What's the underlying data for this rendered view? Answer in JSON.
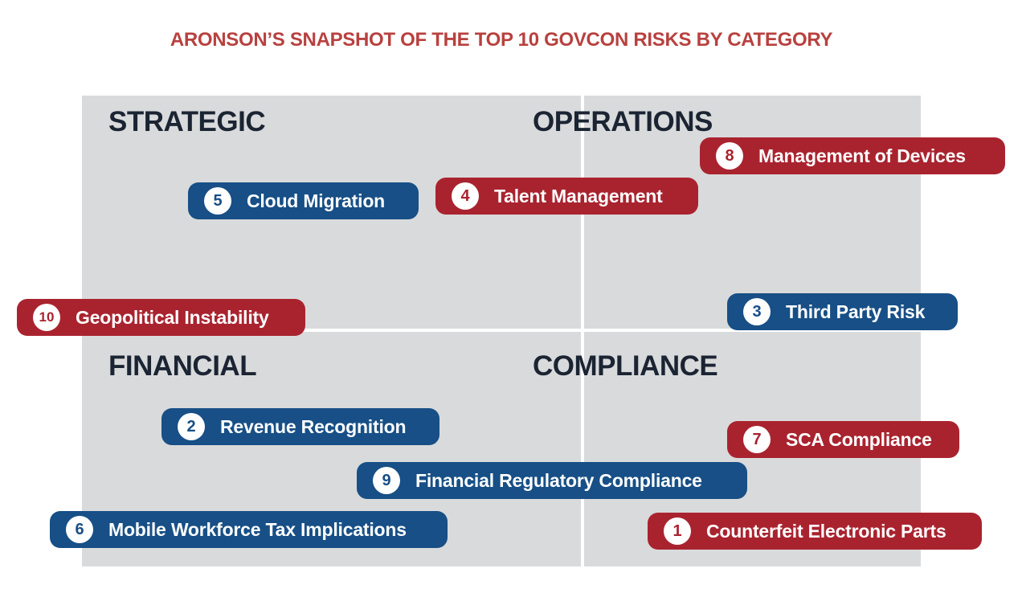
{
  "title": "ARONSON’S SNAPSHOT OF THE TOP 10 GOVCON RISKS BY CATEGORY",
  "colors": {
    "title": "#b8413f",
    "grid_background": "#d9dadb",
    "quadrant_heading": "#1b2433",
    "blue_pill": "#174f86",
    "red_pill": "#a9232f"
  },
  "quadrants": [
    {
      "id": "strategic",
      "label": "STRATEGIC"
    },
    {
      "id": "operations",
      "label": "OPERATIONS"
    },
    {
      "id": "financial",
      "label": "FINANCIAL"
    },
    {
      "id": "compliance",
      "label": "COMPLIANCE"
    }
  ],
  "risks": [
    {
      "number": "1",
      "label": "Counterfeit Electronic Parts",
      "color": "red"
    },
    {
      "number": "2",
      "label": "Revenue Recognition",
      "color": "blue"
    },
    {
      "number": "3",
      "label": "Third Party Risk",
      "color": "blue"
    },
    {
      "number": "4",
      "label": "Talent Management",
      "color": "red"
    },
    {
      "number": "5",
      "label": "Cloud Migration",
      "color": "blue"
    },
    {
      "number": "6",
      "label": "Mobile Workforce Tax Implications",
      "color": "blue"
    },
    {
      "number": "7",
      "label": "SCA Compliance",
      "color": "red"
    },
    {
      "number": "8",
      "label": "Management of Devices",
      "color": "red"
    },
    {
      "number": "9",
      "label": "Financial Regulatory Compliance",
      "color": "blue"
    },
    {
      "number": "10",
      "label": "Geopolitical Instability",
      "color": "red"
    }
  ]
}
